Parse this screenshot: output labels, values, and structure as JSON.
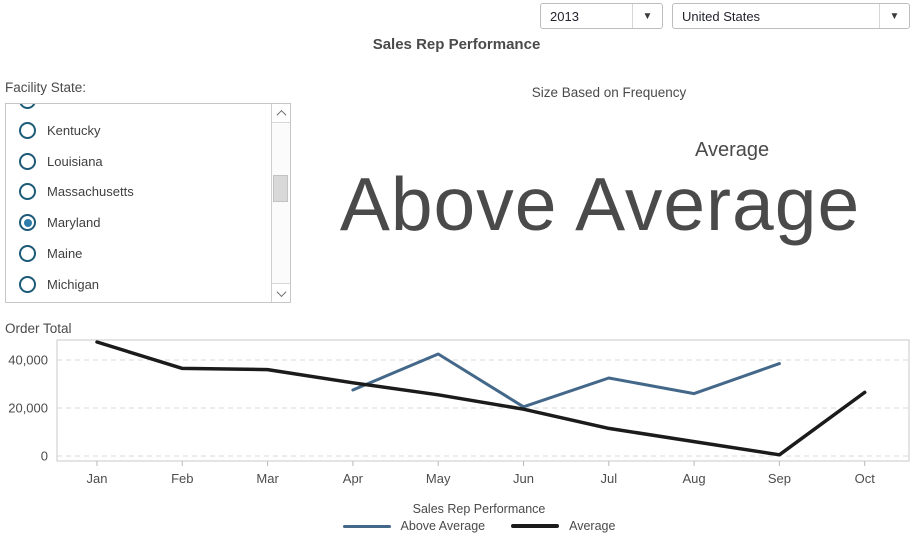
{
  "header": {
    "title": "Sales Rep Performance",
    "year_combo": {
      "value": "2013"
    },
    "region_combo": {
      "value": "United States"
    }
  },
  "facility_filter": {
    "label": "Facility State:",
    "options": [
      {
        "label": "Kentucky",
        "selected": false
      },
      {
        "label": "Louisiana",
        "selected": false
      },
      {
        "label": "Massachusetts",
        "selected": false
      },
      {
        "label": "Maryland",
        "selected": true
      },
      {
        "label": "Maine",
        "selected": false
      },
      {
        "label": "Michigan",
        "selected": false
      }
    ]
  },
  "word_cloud": {
    "title": "Size Based on Frequency",
    "words": [
      {
        "text": "Average",
        "emphasis": "small"
      },
      {
        "text": "Above Average",
        "emphasis": "large"
      }
    ]
  },
  "chart_data": {
    "type": "line",
    "title": "Sales Rep Performance",
    "ylabel": "Order Total",
    "xlabel": "",
    "categories": [
      "Jan",
      "Feb",
      "Mar",
      "Apr",
      "May",
      "Jun",
      "Jul",
      "Aug",
      "Sep",
      "Oct"
    ],
    "series": [
      {
        "name": "Above Average",
        "color": "#44688a",
        "width": 3,
        "values": [
          null,
          null,
          null,
          27500,
          42500,
          20500,
          32500,
          26000,
          38500,
          null
        ]
      },
      {
        "name": "Average",
        "color": "#1b1b1b",
        "width": 3.5,
        "values": [
          47500,
          36500,
          36000,
          30500,
          25500,
          19500,
          11500,
          6000,
          500,
          26500
        ]
      }
    ],
    "y_ticks": [
      {
        "value": 0,
        "label": "0"
      },
      {
        "value": 20000,
        "label": "20,000"
      },
      {
        "value": 40000,
        "label": "40,000"
      }
    ],
    "ylim": [
      -2000,
      49000
    ],
    "grid": "horizontal-dashed",
    "legend_position": "bottom"
  },
  "colors": {
    "above_average_line": "#44688a",
    "average_line": "#1b1b1b",
    "radio_ring": "#1c5a78",
    "radio_dot": "#2d7cab",
    "text": "#4d4d4d",
    "border": "#c6c6c6",
    "grid": "#d9d9d9"
  }
}
